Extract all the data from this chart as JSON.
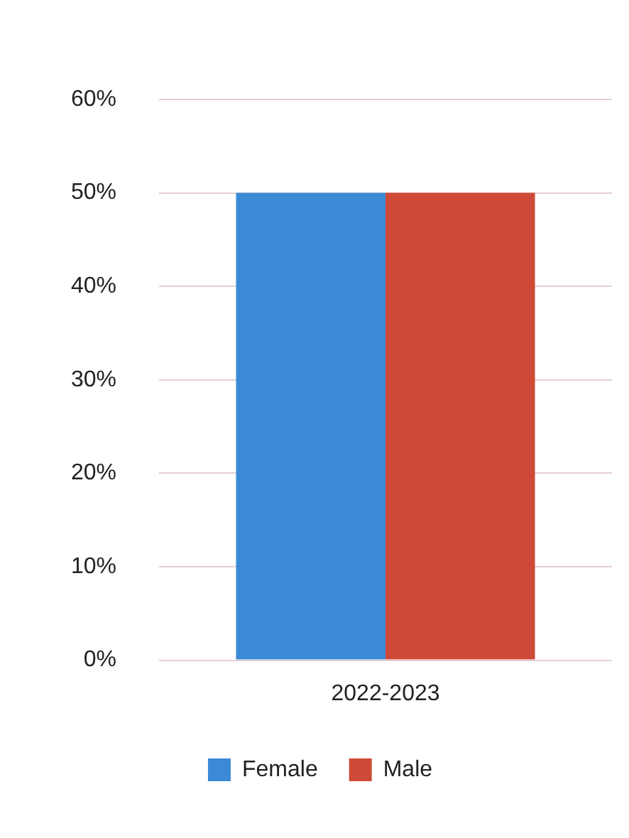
{
  "chart_data": {
    "type": "bar",
    "categories": [
      "2022-2023"
    ],
    "series": [
      {
        "name": "Female",
        "color": "#3b8ad6",
        "values": [
          50
        ]
      },
      {
        "name": "Male",
        "color": "#cf4a36",
        "values": [
          50
        ]
      }
    ],
    "ylim": [
      0,
      60
    ],
    "yticks": [
      {
        "value": 0,
        "label": "0%"
      },
      {
        "value": 10,
        "label": "10%"
      },
      {
        "value": 20,
        "label": "20%"
      },
      {
        "value": 30,
        "label": "30%"
      },
      {
        "value": 40,
        "label": "40%"
      },
      {
        "value": 50,
        "label": "50%"
      },
      {
        "value": 60,
        "label": "60%"
      }
    ],
    "grid": "y",
    "legend": "bottom"
  }
}
